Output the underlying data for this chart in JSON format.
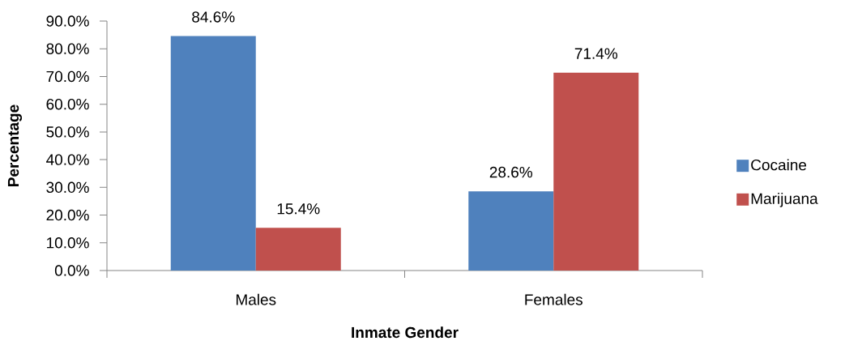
{
  "chart_data": {
    "type": "bar",
    "xlabel": "Inmate Gender",
    "ylabel": "Percentage",
    "categories": [
      "Males",
      "Females"
    ],
    "series": [
      {
        "name": "Cocaine",
        "color": "#4f81bd",
        "values": [
          84.6,
          28.6
        ],
        "value_labels": [
          "84.6%",
          "28.6%"
        ]
      },
      {
        "name": "Marijuana",
        "color": "#c0504d",
        "values": [
          15.4,
          71.4
        ],
        "value_labels": [
          "15.4%",
          "71.4%"
        ]
      }
    ],
    "ylim": [
      0,
      90
    ],
    "yticks": [
      {
        "value": 0,
        "label": "0.0%"
      },
      {
        "value": 10,
        "label": "10.0%"
      },
      {
        "value": 20,
        "label": "20.0%"
      },
      {
        "value": 30,
        "label": "30.0%"
      },
      {
        "value": 40,
        "label": "40.0%"
      },
      {
        "value": 50,
        "label": "50.0%"
      },
      {
        "value": 60,
        "label": "60.0%"
      },
      {
        "value": 70,
        "label": "70.0%"
      },
      {
        "value": 80,
        "label": "80.0%"
      },
      {
        "value": 90,
        "label": "90.0%"
      }
    ],
    "grid": false,
    "legend": "right"
  }
}
